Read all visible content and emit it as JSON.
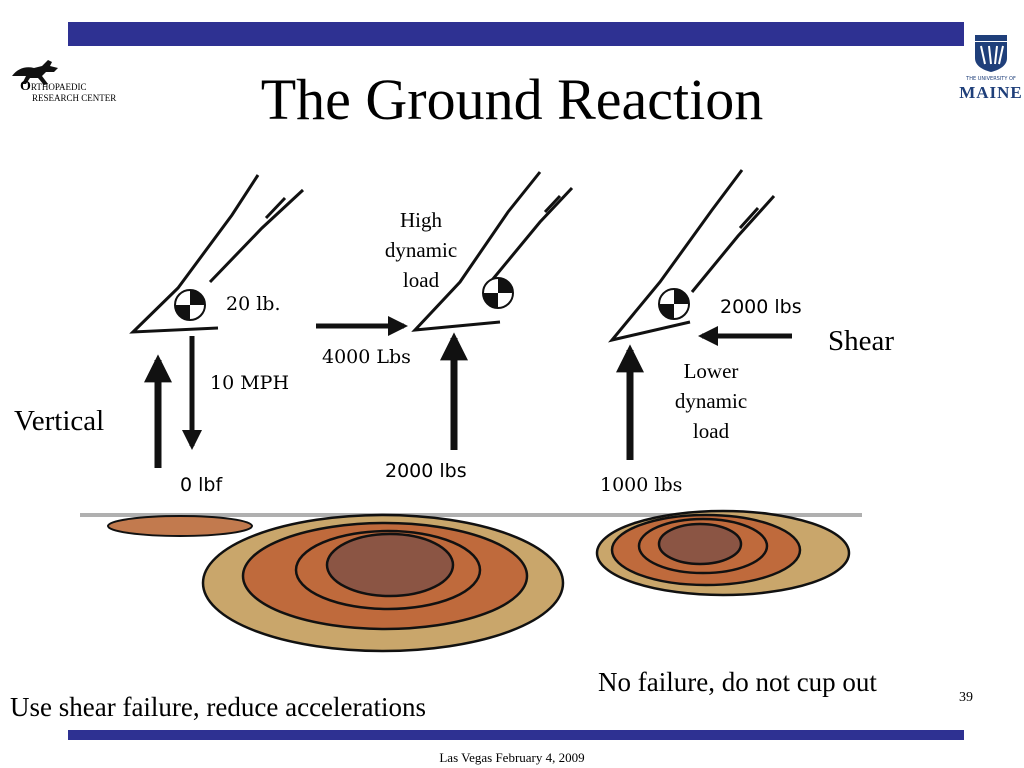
{
  "slide": {
    "title": "The Ground Reaction",
    "page_number": "39",
    "footer": "Las Vegas February 4, 2009",
    "colors": {
      "accent_bar": "#2e3192",
      "maine_blue": "#1f3f7a"
    }
  },
  "logos": {
    "left": {
      "line1": "RTHOPAEDIC",
      "line2": "ESEARCH CENTER",
      "initial1": "O",
      "initial2": "R"
    },
    "right": {
      "line1": "THE UNIVERSITY OF",
      "line2": "MAINE"
    }
  },
  "diagram": {
    "left": {
      "weight": "20 lb.",
      "speed": "10 MPH",
      "force": "0 lbf",
      "side_label": "Vertical"
    },
    "middle": {
      "note": [
        "High",
        "dynamic",
        "load"
      ],
      "horizontal_force": "4000 Lbs",
      "vertical_force": "2000 lbs"
    },
    "right": {
      "horizontal_force": "2000 lbs",
      "note": [
        "Lower",
        "dynamic",
        "load"
      ],
      "vertical_force": "1000 lbs",
      "side_label": "Shear"
    },
    "ground_colors": {
      "outer": "#c9a66b",
      "middle": "#bf6a3c",
      "inner": "#8b5544",
      "small": "#c27a4e",
      "ground_line": "#b0b0b0"
    }
  },
  "captions": {
    "bottom_left": "Use shear failure, reduce accelerations",
    "bottom_right": "No failure, do not cup out"
  }
}
